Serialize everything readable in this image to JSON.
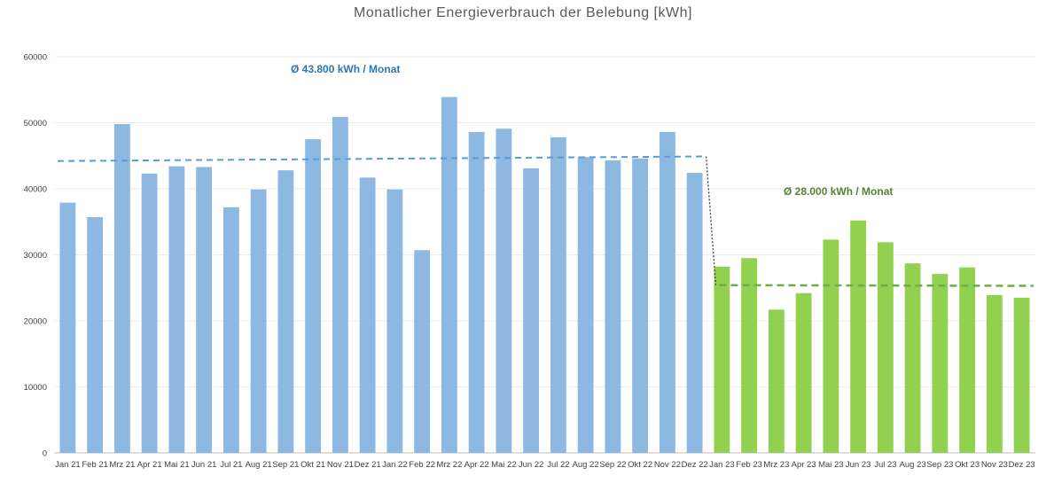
{
  "chart_data": {
    "type": "bar",
    "title": "Monatlicher Energieverbrauch der Belebung [kWh]",
    "xlabel": "",
    "ylabel": "",
    "ylim": [
      0,
      60000
    ],
    "yticks": [
      0,
      10000,
      20000,
      30000,
      40000,
      50000,
      60000
    ],
    "grid": true,
    "categories": [
      "Jan 21",
      "Feb 21",
      "Mrz 21",
      "Apr 21",
      "Mai 21",
      "Jun 21",
      "Jul 21",
      "Aug 21",
      "Sep 21",
      "Okt 21",
      "Nov 21",
      "Dez 21",
      "Jan 22",
      "Feb 22",
      "Mrz 22",
      "Apr 22",
      "Mai 22",
      "Jun 22",
      "Jul 22",
      "Aug 22",
      "Sep 22",
      "Okt 22",
      "Nov 22",
      "Dez 22",
      "Jan 23",
      "Feb 23",
      "Mrz 23",
      "Apr 23",
      "Mai 23",
      "Jun 23",
      "Jul 23",
      "Aug 23",
      "Sep 23",
      "Okt 23",
      "Nov 23",
      "Dez 23"
    ],
    "series": [
      {
        "color": "#8db8e2",
        "values": [
          37900,
          35700,
          49800,
          42300,
          43400,
          43300,
          37200,
          39900,
          42800,
          47500,
          50900,
          41700,
          39900,
          30700,
          53900,
          48600,
          49100,
          43100,
          47800,
          44800,
          44300,
          44600,
          48600,
          42400,
          null,
          null,
          null,
          null,
          null,
          null,
          null,
          null,
          null,
          null,
          null,
          null
        ]
      },
      {
        "color": "#92d050",
        "values": [
          null,
          null,
          null,
          null,
          null,
          null,
          null,
          null,
          null,
          null,
          null,
          null,
          null,
          null,
          null,
          null,
          null,
          null,
          null,
          null,
          null,
          null,
          null,
          null,
          28200,
          29500,
          21700,
          24200,
          32300,
          35200,
          31900,
          28700,
          27100,
          28100,
          23900,
          23500
        ]
      }
    ],
    "averages": [
      {
        "label": "Ø 43.800 kWh / Monat",
        "color": "#2e75b6",
        "line_color": "#5b9bd5",
        "y_start": 44200,
        "y_end": 44900,
        "from_index": 0,
        "to_index": 23
      },
      {
        "label": "Ø 28.000 kWh / Monat",
        "color": "#548235",
        "line_color": "#70ad47",
        "y_start": 25400,
        "y_end": 25300,
        "from_index": 24,
        "to_index": 35
      }
    ]
  }
}
